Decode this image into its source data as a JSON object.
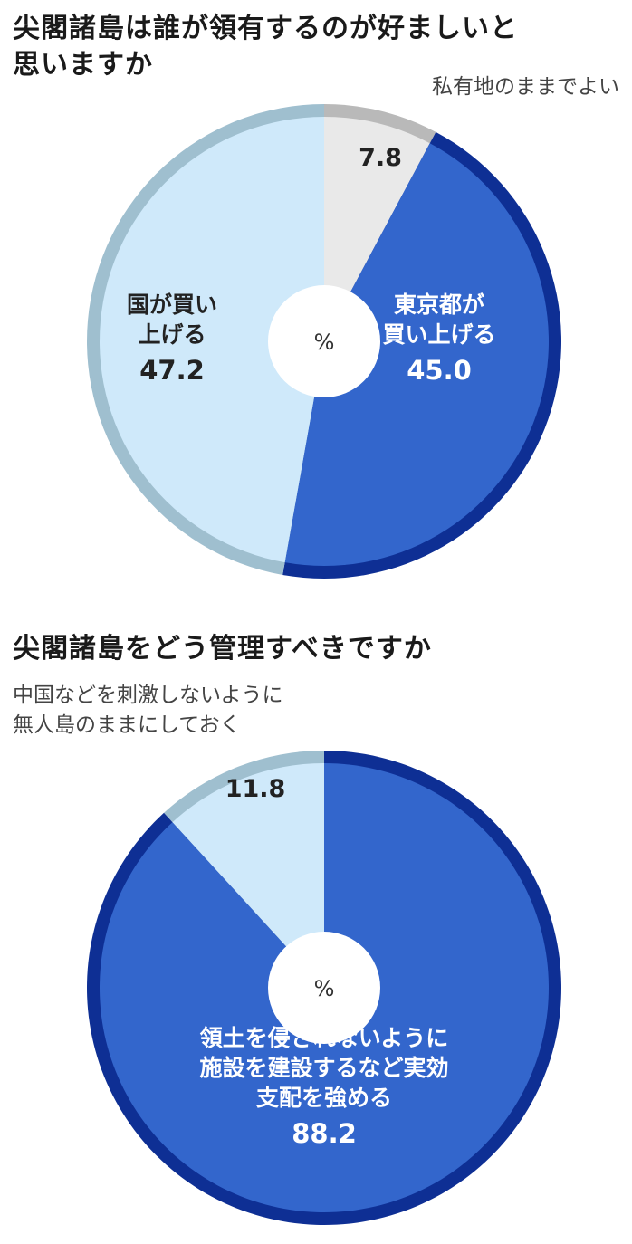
{
  "chart_data": [
    {
      "type": "pie",
      "title": "尖閣諸島は誰が領有するのが好ましいと思いますか",
      "center_label": "%",
      "callout": "私有地のままでよい",
      "slices": [
        {
          "label": "私有地のままでよい",
          "inner_label": "",
          "value": 7.8,
          "value_text": "7.8",
          "color": "#e9e9e9",
          "rim": "#b9b9b9",
          "text_color": "#222222"
        },
        {
          "label": "東京都が買い上げる",
          "inner_label": "東京都が\n買い上げる",
          "value": 45.0,
          "value_text": "45.0",
          "color": "#3366cc",
          "rim": "#0e2f94",
          "text_color": "#ffffff"
        },
        {
          "label": "国が買い上げる",
          "inner_label": "国が買い\n上げる",
          "value": 47.2,
          "value_text": "47.2",
          "color": "#cfe9fa",
          "rim": "#9fbfcf",
          "text_color": "#222222"
        }
      ]
    },
    {
      "type": "pie",
      "title": "尖閣諸島をどう管理すべきですか",
      "center_label": "%",
      "callout": "中国などを刺激しないように\n無人島のままにしておく",
      "slices": [
        {
          "label": "領土を侵されないように施設を建設するなど実効支配を強める",
          "inner_label": "領土を侵されないように\n施設を建設するなど実効\n支配を強める",
          "value": 88.2,
          "value_text": "88.2",
          "color": "#3366cc",
          "rim": "#0e2f94",
          "text_color": "#ffffff"
        },
        {
          "label": "中国などを刺激しないように無人島のままにしておく",
          "inner_label": "",
          "value": 11.8,
          "value_text": "11.8",
          "color": "#cfe9fa",
          "rim": "#9fbfcf",
          "text_color": "#222222"
        }
      ]
    }
  ]
}
